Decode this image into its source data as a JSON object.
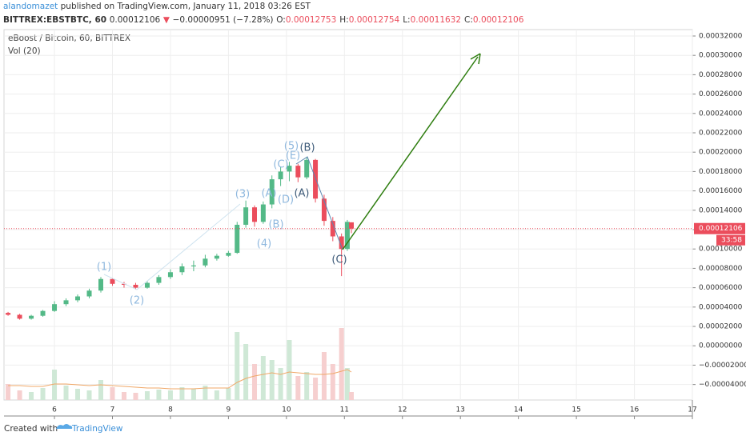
{
  "header": {
    "author": "alandomazet",
    "published": "published on TradingView.com, January 11, 2018 03:26 EST",
    "symbol": "BITTREX:EBSTBTC, 60",
    "last": "0.00012106",
    "arrow": "▼",
    "change": "−0.00000951 (−7.28%)",
    "ohlc": [
      {
        "key": "O:",
        "value": "0.00012753"
      },
      {
        "key": "H:",
        "value": "0.00012754"
      },
      {
        "key": "L:",
        "value": "0.00011632"
      },
      {
        "key": "C:",
        "value": "0.00012106"
      }
    ]
  },
  "chart_data": {
    "type": "candlestick",
    "title": "eBoost / Bitcoin, 60, BITTREX",
    "subtitle": "Vol (20)",
    "x": [
      5.2,
      5.4,
      5.6,
      5.8,
      6.0,
      6.2,
      6.4,
      6.6,
      6.8,
      7.0,
      7.2,
      7.4,
      7.6,
      7.8,
      8.0,
      8.2,
      8.4,
      8.6,
      8.8,
      9.0,
      9.15,
      9.3,
      9.45,
      9.6,
      9.75,
      9.9,
      10.05,
      10.2,
      10.35,
      10.5,
      10.65,
      10.8,
      10.95,
      11.05,
      11.12
    ],
    "open": [
      3.4e-05,
      3.2e-05,
      2.8e-05,
      3.1e-05,
      3.6e-05,
      4.3e-05,
      4.7e-05,
      5.1e-05,
      5.7e-05,
      6.9e-05,
      6.4e-05,
      6.3e-05,
      6e-05,
      6.5e-05,
      7.1e-05,
      7.6e-05,
      8.2e-05,
      8.3e-05,
      9e-05,
      9.3e-05,
      9.6e-05,
      0.000125,
      0.000143,
      0.000128,
      0.000146,
      0.000172,
      0.00018,
      0.000186,
      0.000174,
      0.000192,
      0.000152,
      0.000129,
      0.000113,
      0.0001,
      0.00012753
    ],
    "high": [
      3.5e-05,
      3.3e-05,
      3.2e-05,
      3.7e-05,
      4.6e-05,
      4.9e-05,
      5.3e-05,
      5.9e-05,
      7.1e-05,
      7e-05,
      6.6e-05,
      6.5e-05,
      6.7e-05,
      7.3e-05,
      7.9e-05,
      8.5e-05,
      8.8e-05,
      9.4e-05,
      9.5e-05,
      9.8e-05,
      0.000128,
      0.00015,
      0.000145,
      0.000149,
      0.000176,
      0.000185,
      0.00019,
      0.000188,
      0.000195,
      0.000193,
      0.000156,
      0.000133,
      0.000116,
      0.00013,
      0.00012754
    ],
    "low": [
      3.1e-05,
      2.7e-05,
      2.7e-05,
      3e-05,
      3.5e-05,
      4.1e-05,
      4.5e-05,
      4.9e-05,
      5.5e-05,
      6.2e-05,
      6e-05,
      5.8e-05,
      5.9e-05,
      6.3e-05,
      6.9e-05,
      7.3e-05,
      7.7e-05,
      8.1e-05,
      8.8e-05,
      9.2e-05,
      9.5e-05,
      0.000122,
      0.000123,
      0.000126,
      0.000142,
      0.000165,
      0.00017,
      0.000169,
      0.000172,
      0.000148,
      0.000124,
      0.000108,
      7.2e-05,
      9.8e-05,
      0.00011632
    ],
    "close": [
      3.2e-05,
      2.8e-05,
      3.1e-05,
      3.6e-05,
      4.3e-05,
      4.7e-05,
      5.1e-05,
      5.7e-05,
      6.9e-05,
      6.4e-05,
      6.3e-05,
      6e-05,
      6.5e-05,
      7.1e-05,
      7.6e-05,
      8.2e-05,
      8.3e-05,
      9e-05,
      9.3e-05,
      9.6e-05,
      0.000125,
      0.000143,
      0.000128,
      0.000146,
      0.000172,
      0.00018,
      0.000186,
      0.000174,
      0.000192,
      0.000152,
      0.000129,
      0.000113,
      0.0001,
      0.000128,
      0.00012106
    ],
    "volume": [
      20,
      12,
      10,
      15,
      38,
      18,
      14,
      12,
      25,
      16,
      10,
      9,
      11,
      13,
      12,
      16,
      14,
      18,
      12,
      15,
      85,
      70,
      45,
      55,
      50,
      40,
      75,
      30,
      35,
      28,
      60,
      45,
      90,
      40,
      10
    ],
    "volume_ma": [
      18,
      18,
      17,
      17,
      20,
      20,
      19,
      18,
      19,
      18,
      17,
      16,
      15,
      15,
      14,
      14,
      14,
      15,
      15,
      15,
      22,
      27,
      30,
      32,
      34,
      32,
      35,
      34,
      33,
      32,
      32,
      33,
      36,
      38,
      35
    ],
    "up_color": "#53b987",
    "down_color": "#eb4d5c",
    "volume_up_color": "#cfe8d6",
    "volume_down_color": "#f6cfcf",
    "ma_color": "#f0a868",
    "xlim": [
      5.13,
      17.0
    ],
    "xticks": [
      6,
      7,
      8,
      9,
      10,
      11,
      12,
      13,
      14,
      15,
      16,
      17
    ],
    "ylim": [
      -5.6e-05,
      0.0003266
    ],
    "yticks": [
      {
        "value": 0.00032,
        "label": "0.00032000"
      },
      {
        "value": 0.0003,
        "label": "0.00030000"
      },
      {
        "value": 0.00028,
        "label": "0.00028000"
      },
      {
        "value": 0.00026,
        "label": "0.00026000"
      },
      {
        "value": 0.00024,
        "label": "0.00024000"
      },
      {
        "value": 0.00022,
        "label": "0.00022000"
      },
      {
        "value": 0.0002,
        "label": "0.00020000"
      },
      {
        "value": 0.00018,
        "label": "0.00018000"
      },
      {
        "value": 0.00016,
        "label": "0.00016000"
      },
      {
        "value": 0.00014,
        "label": "0.00014000"
      },
      {
        "value": 0.00012,
        "label": "0.00012000"
      },
      {
        "value": 0.0001,
        "label": "0.00010000"
      },
      {
        "value": 8e-05,
        "label": "0.00008000"
      },
      {
        "value": 6e-05,
        "label": "0.00006000"
      },
      {
        "value": 4e-05,
        "label": "0.00004000"
      },
      {
        "value": 2e-05,
        "label": "0.00002000"
      },
      {
        "value": 0,
        "label": "0.00000000"
      },
      {
        "value": -2e-05,
        "label": "−0.00002000"
      },
      {
        "value": -4e-05,
        "label": "−0.00004000"
      }
    ],
    "last_price": {
      "value": 0.00012106,
      "label": "0.00012106",
      "countdown": "33:58",
      "color": "#eb4d5c"
    },
    "annotations": [
      {
        "text": "(1)",
        "color": "#8fb8de"
      },
      {
        "text": "(2)",
        "color": "#8fb8de"
      },
      {
        "text": "(3)",
        "color": "#8fb8de"
      },
      {
        "text": "(4)",
        "color": "#8fb8de"
      },
      {
        "text": "(A)",
        "color": "#8fb8de"
      },
      {
        "text": "(B)",
        "color": "#8fb8de"
      },
      {
        "text": "(D)",
        "color": "#8fb8de"
      },
      {
        "text": "(C)",
        "color": "#8fb8de"
      },
      {
        "text": "(E)",
        "color": "#8fb8de"
      },
      {
        "text": "(5)",
        "color": "#8fb8de"
      },
      {
        "text": "(B)",
        "color": "#3d5a78"
      },
      {
        "text": "(A)",
        "color": "#3d5a78"
      },
      {
        "text": "(C)",
        "color": "#3d5a78"
      }
    ],
    "grid": true
  },
  "footer": {
    "created": "Created with",
    "brand": "TradingView"
  }
}
